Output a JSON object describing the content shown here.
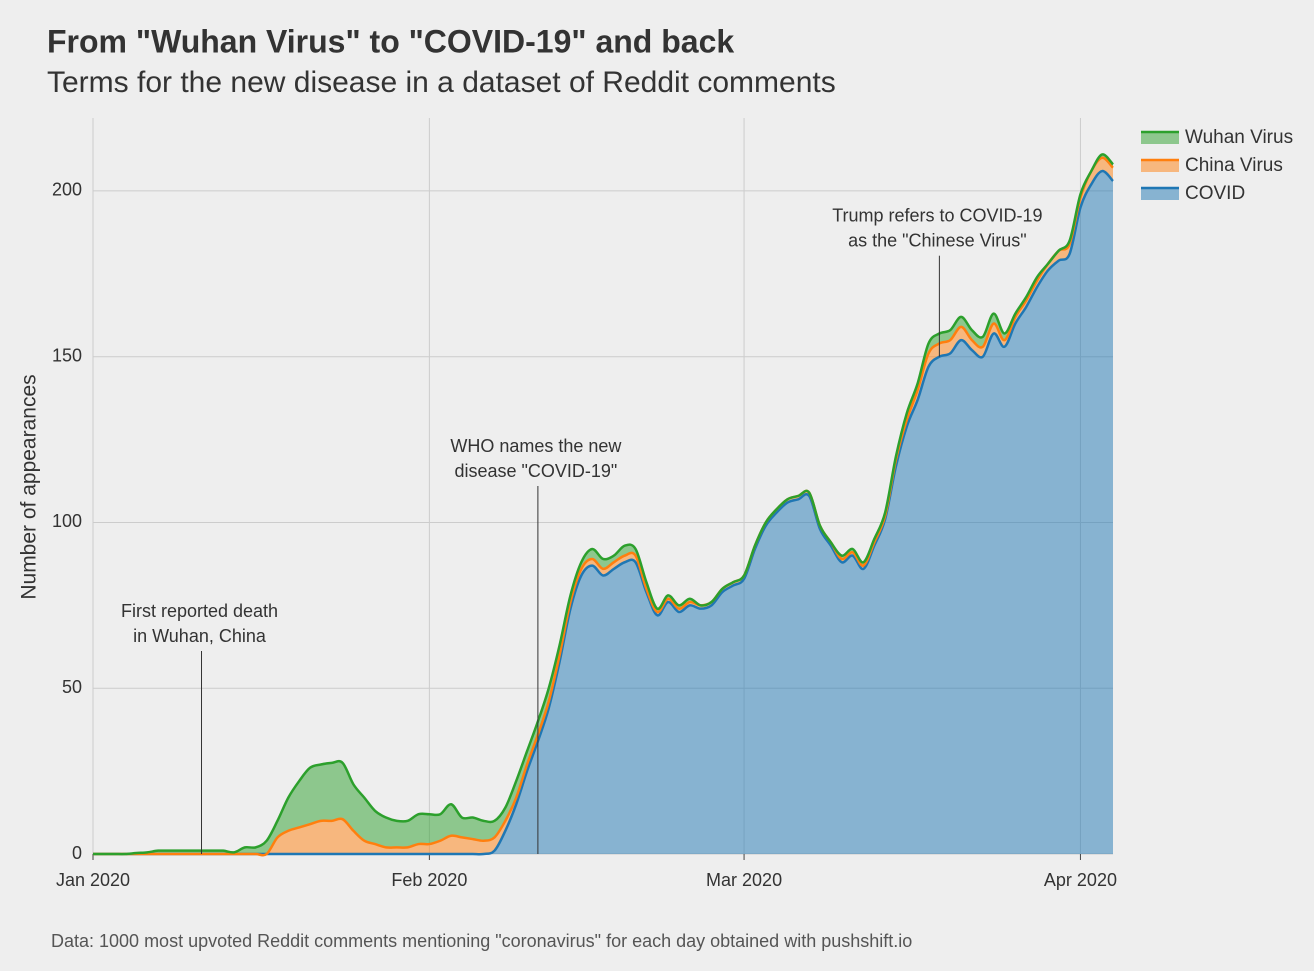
{
  "chart_data": {
    "type": "stacked_area",
    "title": "From \"Wuhan Virus\" to \"COVID-19\" and back",
    "subtitle": "Terms for the new disease in a dataset of Reddit comments",
    "y_label": "Number of appearances",
    "footnote": "Data: 1000 most upvoted Reddit comments mentioning \"coronavirus\" for each day obtained with pushshift.io",
    "x": [
      0,
      1,
      2,
      3,
      4,
      5,
      6,
      7,
      8,
      9,
      10,
      11,
      12,
      13,
      14,
      15,
      16,
      17,
      18,
      19,
      20,
      21,
      22,
      23,
      24,
      25,
      26,
      27,
      28,
      29,
      30,
      31,
      32,
      33,
      34,
      35,
      36,
      37,
      38,
      39,
      40,
      41,
      42,
      43,
      44,
      45,
      46,
      47,
      48,
      49,
      50,
      51,
      52,
      53,
      54,
      55,
      56,
      57,
      58,
      59,
      60,
      61,
      62,
      63,
      64,
      65,
      66,
      67,
      68,
      69,
      70,
      71,
      72,
      73,
      74,
      75,
      76,
      77,
      78,
      79,
      80,
      81,
      82,
      83,
      84,
      85,
      86,
      87,
      88,
      89,
      90,
      91,
      92,
      93,
      94
    ],
    "xlim": [
      0,
      94
    ],
    "xticks": [
      {
        "value": 0,
        "label": "Jan 2020"
      },
      {
        "value": 31,
        "label": "Feb 2020"
      },
      {
        "value": 60,
        "label": "Mar 2020"
      },
      {
        "value": 91,
        "label": "Apr 2020"
      }
    ],
    "ylim": [
      0,
      222
    ],
    "yticks": [
      0,
      50,
      100,
      150,
      200
    ],
    "grid": true,
    "legend": "top-right",
    "series": [
      {
        "name": "Wuhan Virus",
        "color": "#2ca02c",
        "values": [
          0,
          0,
          0,
          0,
          0.3,
          0.5,
          1,
          1,
          1,
          1,
          1,
          1,
          1,
          0.5,
          2,
          2,
          4,
          5,
          10,
          14,
          17,
          17,
          17.5,
          17,
          14,
          13,
          10,
          9,
          8,
          8,
          9,
          9,
          8,
          9.5,
          6,
          6.5,
          6,
          5,
          4,
          5,
          4,
          4,
          4,
          3,
          2,
          2,
          3,
          3,
          2,
          3,
          2,
          2,
          1,
          1,
          1,
          1,
          0,
          0,
          0,
          0,
          0,
          0,
          0,
          0,
          0,
          0,
          0,
          0,
          0,
          1,
          1,
          1,
          1,
          1,
          1,
          2,
          2,
          3,
          3,
          3,
          3,
          3,
          3,
          3,
          2,
          1,
          1,
          1,
          0,
          0,
          1,
          1,
          0,
          1,
          1
        ]
      },
      {
        "name": "China Virus",
        "color": "#ff7f0e",
        "values": [
          0,
          0,
          0,
          0,
          0,
          0,
          0,
          0,
          0,
          0,
          0,
          0,
          0,
          0,
          0,
          0,
          0,
          5,
          7,
          8,
          9,
          10,
          10,
          10.5,
          7,
          4,
          3,
          2,
          2,
          2,
          3,
          3,
          4,
          5.5,
          5,
          4.5,
          4,
          4,
          3,
          2,
          2,
          2,
          2,
          2,
          2,
          2,
          2,
          2,
          2,
          2,
          2,
          1,
          1,
          1,
          1,
          1,
          1,
          1,
          1,
          1,
          1,
          1,
          1,
          1,
          1,
          1,
          1,
          1,
          1,
          1,
          1,
          1,
          1,
          1,
          2,
          2,
          3,
          4,
          4,
          4,
          4,
          3,
          3,
          3,
          2,
          2,
          2,
          2,
          2,
          3,
          3,
          3,
          4,
          4,
          4
        ]
      },
      {
        "name": "COVID",
        "color": "#1f77b4",
        "values": [
          0,
          0,
          0,
          0,
          0,
          0,
          0,
          0,
          0,
          0,
          0,
          0,
          0,
          0,
          0,
          0,
          0,
          0,
          0,
          0,
          0,
          0,
          0,
          0,
          0,
          0,
          0,
          0,
          0,
          0,
          0,
          0,
          0,
          0,
          0,
          0,
          0,
          1,
          7,
          15,
          25,
          34,
          44,
          58,
          74,
          84,
          87,
          84,
          86,
          88,
          88,
          79,
          72,
          76,
          73,
          75,
          74,
          75,
          79,
          81,
          83,
          92,
          99,
          103,
          106,
          107,
          108,
          98,
          93,
          88,
          90,
          86,
          93,
          101,
          117,
          129,
          137,
          147,
          150,
          151,
          155,
          152,
          150,
          157,
          153,
          160,
          165,
          171,
          176,
          179,
          181,
          195,
          202,
          206,
          203
        ]
      }
    ],
    "annotations": [
      {
        "text": [
          "First reported death",
          "in Wuhan, China"
        ],
        "x": 10,
        "y": 0
      },
      {
        "text": [
          "WHO names the new",
          "disease \"COVID-19\""
        ],
        "x": 41,
        "y": 0
      },
      {
        "text": [
          "Trump refers to COVID-19",
          "as the \"Chinese Virus\""
        ],
        "x": 78,
        "y": 150
      }
    ]
  }
}
